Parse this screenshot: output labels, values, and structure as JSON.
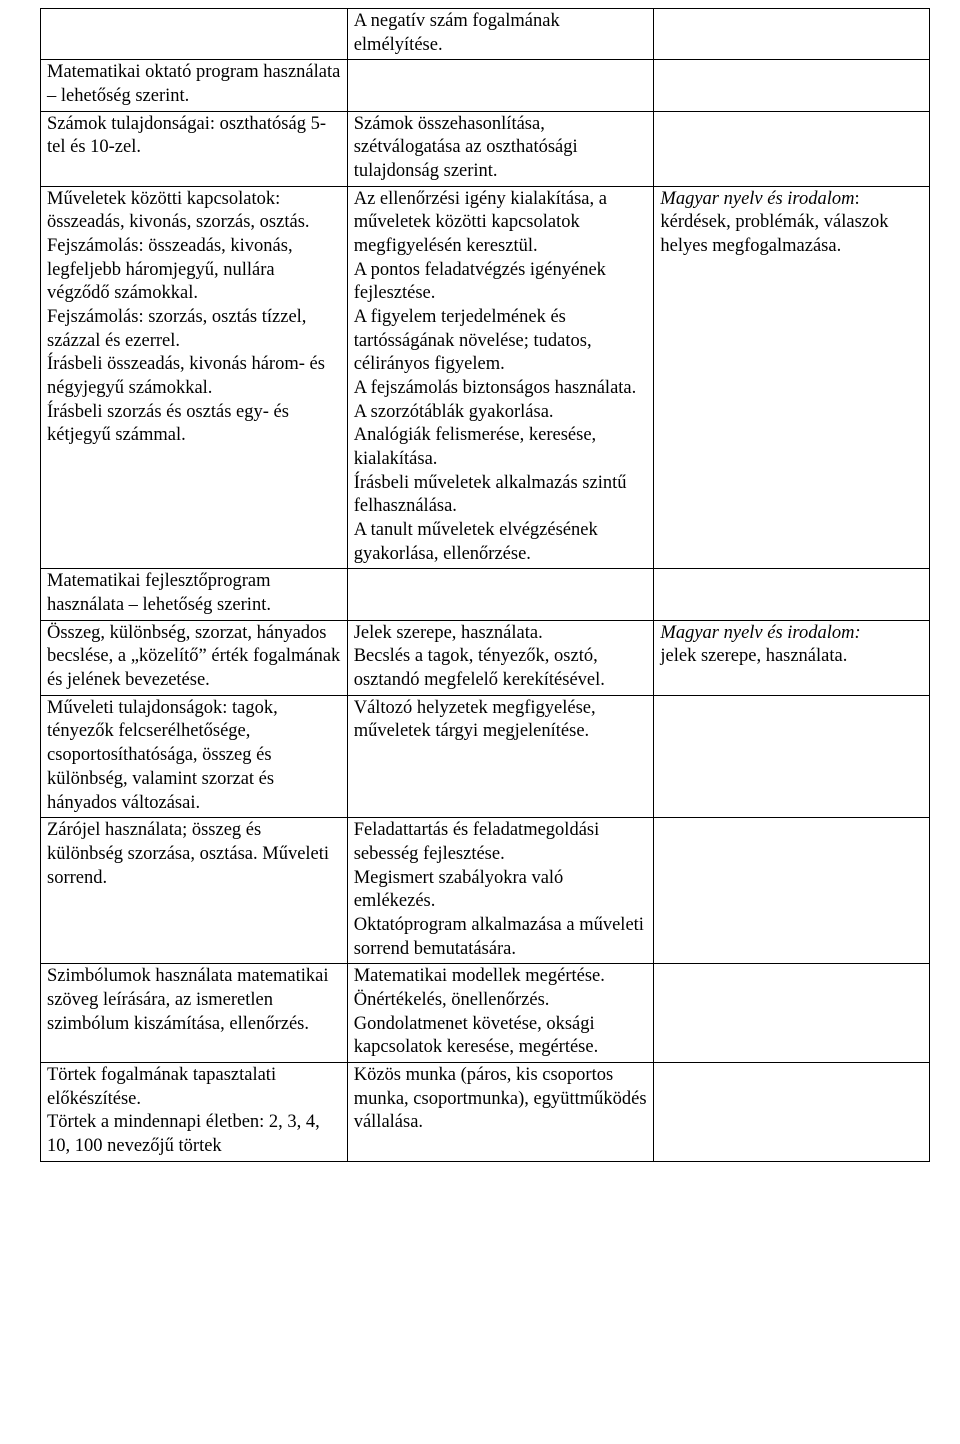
{
  "table": {
    "columns": [
      {
        "name": "col1",
        "width": "34.5%"
      },
      {
        "name": "col2",
        "width": "34.5%"
      },
      {
        "name": "col3",
        "width": "31%"
      }
    ],
    "fontsize": 18.5,
    "font_family": "Times New Roman",
    "border_color": "#000000",
    "background_color": "#ffffff",
    "text_color": "#000000",
    "rows": [
      {
        "c1": "",
        "c2": "A negatív szám fogalmának elmélyítése.",
        "c3": ""
      },
      {
        "c1": "Matematikai oktató program használata – lehetőség szerint.",
        "c2": "",
        "c3": ""
      },
      {
        "c1": "Számok tulajdonságai: oszthatóság 5-tel és 10-zel.",
        "c2": "Számok összehasonlítása, szétválogatása az oszthatósági tulajdonság szerint.",
        "c3": ""
      },
      {
        "c1": "Műveletek közötti kapcsolatok: összeadás, kivonás, szorzás, osztás.\nFejszámolás: összeadás, kivonás, legfeljebb háromjegyű, nullára végződő számokkal.\nFejszámolás: szorzás, osztás tízzel, százzal és ezerrel.\nÍrásbeli összeadás, kivonás három- és négyjegyű számokkal.\nÍrásbeli szorzás és osztás egy- és kétjegyű számmal.",
        "c2": "Az ellenőrzési igény kialakítása, a műveletek közötti kapcsolatok megfigyelésén keresztül.\nA pontos feladatvégzés igényének fejlesztése.\nA figyelem terjedelmének és tartósságának növelése; tudatos, célirányos figyelem.\nA fejszámolás biztonságos használata. A szorzótáblák gyakorlása.\nAnalógiák felismerése, keresése, kialakítása.\nÍrásbeli műveletek alkalmazás szintű felhasználása.\nA tanult műveletek elvégzésének gyakorlása, ellenőrzése.",
        "c3_italic": "Magyar nyelv és irodalom",
        "c3_plain": ":\nkérdések, problémák, válaszok helyes megfogalmazása."
      },
      {
        "c1": "Matematikai fejlesztőprogram használata – lehetőség szerint.",
        "c2": "",
        "c3": ""
      },
      {
        "c1": "Összeg, különbség, szorzat, hányados becslése, a „közelítő” érték fogalmának és jelének bevezetése.",
        "c2": "Jelek szerepe, használata.\nBecslés a tagok, tényezők, osztó, osztandó megfelelő kerekítésével.",
        "c3_italic": "Magyar nyelv és irodalom:",
        "c3_plain": "\njelek szerepe, használata."
      },
      {
        "c1": "Műveleti tulajdonságok: tagok, tényezők felcserélhetősége, csoportosíthatósága, összeg és különbség, valamint szorzat és hányados változásai.",
        "c2": "Változó helyzetek megfigyelése, műveletek tárgyi megjelenítése.",
        "c3": ""
      },
      {
        "c1": "Zárójel használata; összeg és különbség szorzása, osztása. Műveleti sorrend.",
        "c2": "Feladattartás és feladatmegoldási sebesség fejlesztése.\nMegismert szabályokra való emlékezés.\nOktatóprogram alkalmazása a műveleti sorrend bemutatására.",
        "c3": ""
      },
      {
        "c1": "Szimbólumok használata matematikai szöveg leírására, az ismeretlen szimbólum kiszámítása, ellenőrzés.",
        "c2": "Matematikai modellek megértése.\nÖnértékelés, önellenőrzés.\nGondolatmenet követése, oksági kapcsolatok keresése, megértése.",
        "c3": ""
      },
      {
        "c1": "Törtek fogalmának tapasztalati előkészítése.\nTörtek a mindennapi életben: 2, 3, 4, 10, 100 nevezőjű törtek",
        "c2": "Közös munka (páros, kis csoportos munka, csoportmunka), együttműködés vállalása.",
        "c3": ""
      }
    ]
  }
}
